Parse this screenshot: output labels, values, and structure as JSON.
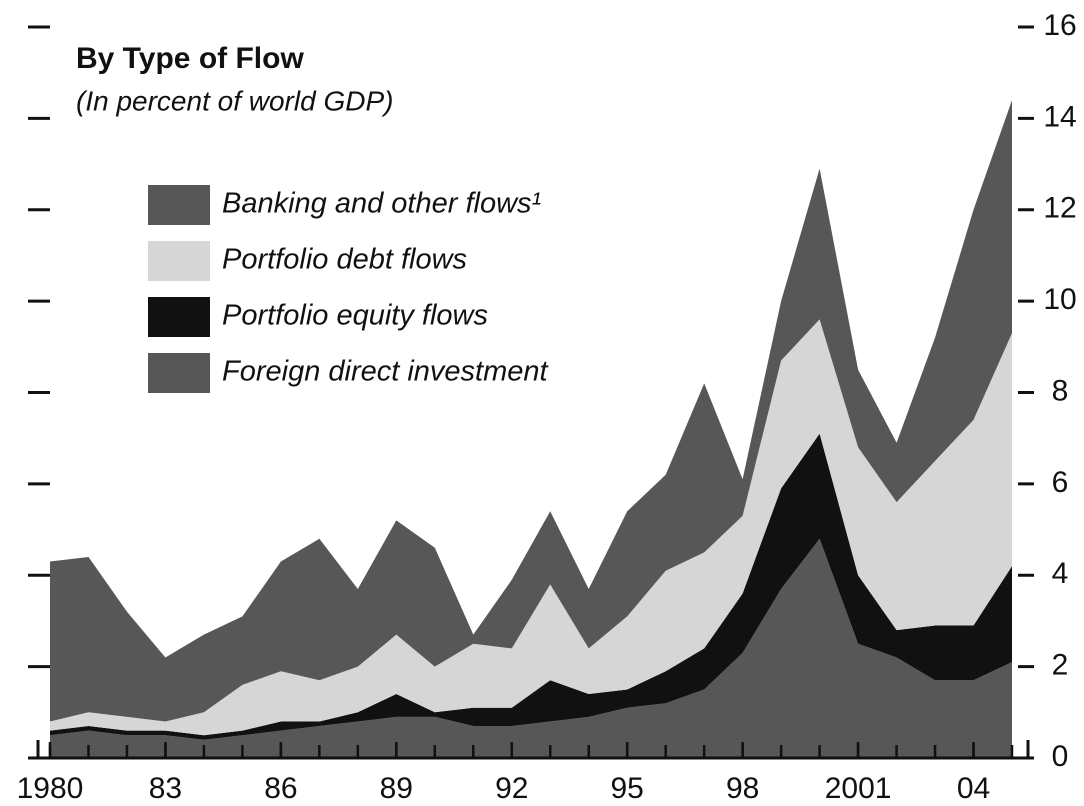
{
  "chart_data": {
    "type": "stacked_area",
    "title": "By Type of Flow",
    "subtitle": "(In percent of world GDP)",
    "x": [
      1980,
      1981,
      1982,
      1983,
      1984,
      1985,
      1986,
      1987,
      1988,
      1989,
      1990,
      1991,
      1992,
      1993,
      1994,
      1995,
      1996,
      1997,
      1998,
      1999,
      2000,
      2001,
      2002,
      2003,
      2004,
      2005
    ],
    "series": [
      {
        "name": "Banking and other flows¹",
        "color": "#575757",
        "values": [
          3.5,
          3.4,
          2.3,
          1.4,
          1.7,
          1.5,
          2.4,
          3.1,
          1.7,
          2.5,
          2.6,
          0.2,
          1.5,
          1.6,
          1.3,
          2.3,
          2.1,
          3.7,
          0.8,
          1.3,
          3.3,
          1.7,
          1.3,
          2.7,
          4.6,
          5.1
        ]
      },
      {
        "name": "Portfolio debt flows",
        "color": "#d6d6d6",
        "values": [
          0.2,
          0.3,
          0.3,
          0.2,
          0.5,
          1.0,
          1.1,
          0.9,
          1.0,
          1.3,
          1.0,
          1.4,
          1.3,
          2.1,
          1.0,
          1.6,
          2.2,
          2.1,
          1.7,
          2.8,
          2.5,
          2.8,
          2.8,
          3.6,
          4.5,
          5.1
        ]
      },
      {
        "name": "Portfolio equity flows",
        "color": "#111111",
        "values": [
          0.1,
          0.1,
          0.1,
          0.1,
          0.1,
          0.1,
          0.2,
          0.1,
          0.2,
          0.5,
          0.1,
          0.4,
          0.4,
          0.9,
          0.5,
          0.4,
          0.7,
          0.9,
          1.3,
          2.2,
          2.3,
          1.5,
          0.6,
          1.2,
          1.2,
          2.1
        ]
      },
      {
        "name": "Foreign direct investment",
        "color": "#575757",
        "values": [
          0.5,
          0.6,
          0.5,
          0.5,
          0.4,
          0.5,
          0.6,
          0.7,
          0.8,
          0.9,
          0.9,
          0.7,
          0.7,
          0.8,
          0.9,
          1.1,
          1.2,
          1.5,
          2.3,
          3.7,
          4.8,
          2.5,
          2.2,
          1.7,
          1.7,
          2.1
        ]
      }
    ],
    "xlim": [
      1980,
      2005
    ],
    "xticks": [
      {
        "value": 1980,
        "label": "1980"
      },
      {
        "value": 1983,
        "label": "83"
      },
      {
        "value": 1986,
        "label": "86"
      },
      {
        "value": 1989,
        "label": "89"
      },
      {
        "value": 1992,
        "label": "92"
      },
      {
        "value": 1995,
        "label": "95"
      },
      {
        "value": 1998,
        "label": "98"
      },
      {
        "value": 2001,
        "label": "2001"
      },
      {
        "value": 2004,
        "label": "04"
      }
    ],
    "ylim": [
      0,
      16
    ],
    "yticks": [
      0,
      2,
      4,
      6,
      8,
      10,
      12,
      14,
      16
    ]
  }
}
